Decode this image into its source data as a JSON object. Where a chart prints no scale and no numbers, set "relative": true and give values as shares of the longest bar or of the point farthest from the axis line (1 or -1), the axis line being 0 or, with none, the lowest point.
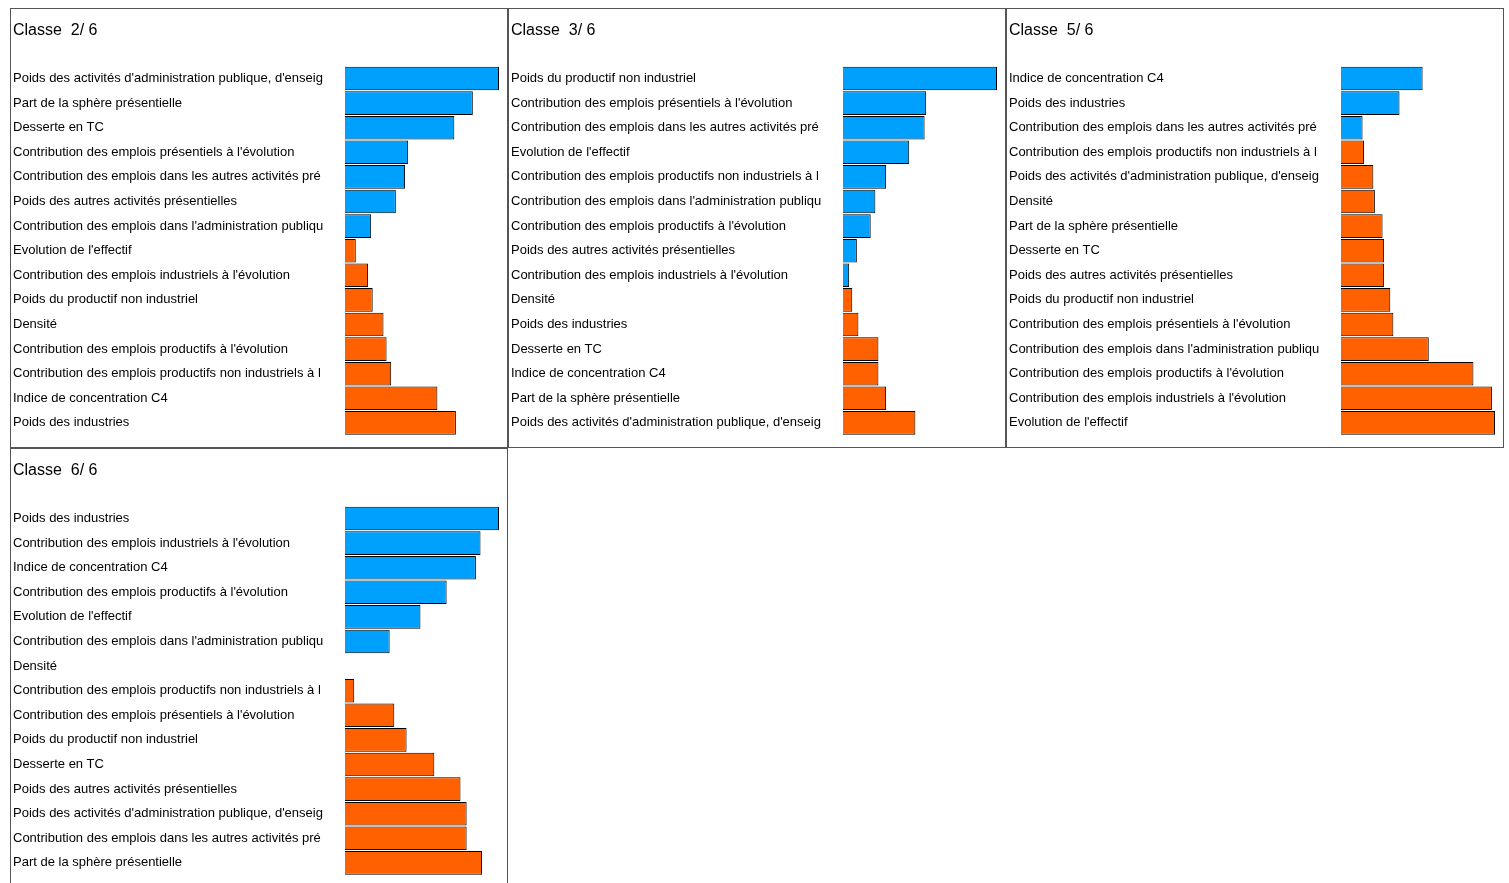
{
  "chart_data": [
    {
      "type": "bar",
      "orientation": "horizontal",
      "relative": true,
      "title": "Classe  2/ 6",
      "categories": [
        "Poids des activités d'administration publique, d'enseig",
        "Part de la sphère présentielle",
        "Desserte en TC",
        "Contribution des emplois présentiels à l'évolution",
        "Contribution des emplois dans les autres activités pré",
        "Poids des autres activités présentielles",
        "Contribution des emplois dans l'administration publiqu",
        "Evolution de l'effectif",
        "Contribution des emplois industriels à l'évolution",
        "Poids du productif non industriel",
        "Densité",
        "Contribution des emplois productifs à l'évolution",
        "Contribution des emplois productifs non industriels à l",
        "Indice de concentration C4",
        "Poids des industries"
      ],
      "values": [
        1,
        0.83,
        0.71,
        0.41,
        0.39,
        0.33,
        0.17,
        0.07,
        0.15,
        0.18,
        0.25,
        0.27,
        0.3,
        0.6,
        0.72
      ],
      "colors": [
        "#00a0ff",
        "#00a0ff",
        "#00a0ff",
        "#00a0ff",
        "#00a0ff",
        "#00a0ff",
        "#00a0ff",
        "#ff6000",
        "#ff6000",
        "#ff6000",
        "#ff6000",
        "#ff6000",
        "#ff6000",
        "#ff6000",
        "#ff6000"
      ]
    },
    {
      "type": "bar",
      "orientation": "horizontal",
      "relative": true,
      "title": "Classe  3/ 6",
      "categories": [
        "Poids du productif non industriel",
        "Contribution des emplois présentiels à l'évolution",
        "Contribution des emplois dans les autres activités pré",
        "Evolution de l'effectif",
        "Contribution des emplois productifs non industriels à l",
        "Contribution des emplois dans l'administration publiqu",
        "Contribution des emplois productifs à l'évolution",
        "Poids des autres activités présentielles",
        "Contribution des emplois industriels à l'évolution",
        "Densité",
        "Poids des industries",
        "Desserte en TC",
        "Indice de concentration C4",
        "Part de la sphère présentielle",
        "Poids des activités d'administration publique, d'enseig"
      ],
      "values": [
        1,
        0.54,
        0.53,
        0.43,
        0.28,
        0.21,
        0.18,
        0.09,
        0.04,
        0.06,
        0.1,
        0.23,
        0.23,
        0.28,
        0.47
      ],
      "colors": [
        "#00a0ff",
        "#00a0ff",
        "#00a0ff",
        "#00a0ff",
        "#00a0ff",
        "#00a0ff",
        "#00a0ff",
        "#00a0ff",
        "#00a0ff",
        "#ff6000",
        "#ff6000",
        "#ff6000",
        "#ff6000",
        "#ff6000",
        "#ff6000"
      ]
    },
    {
      "type": "bar",
      "orientation": "horizontal",
      "relative": true,
      "title": "Classe  5/ 6",
      "categories": [
        "Indice de concentration C4",
        "Poids des industries",
        "Contribution des emplois dans les autres activités pré",
        "Contribution des emplois productifs non industriels à l",
        "Poids des activités d'administration publique, d'enseig",
        "Densité",
        "Part de la sphère présentielle",
        "Desserte en TC",
        "Poids des autres activités présentielles",
        "Poids du productif non industriel",
        "Contribution des emplois présentiels à l'évolution",
        "Contribution des emplois dans l'administration publiqu",
        "Contribution des emplois productifs à l'évolution",
        "Contribution des emplois industriels à l'évolution",
        "Evolution de l'effectif"
      ],
      "values": [
        0.53,
        0.38,
        0.14,
        0.15,
        0.21,
        0.22,
        0.27,
        0.28,
        0.28,
        0.32,
        0.34,
        0.57,
        0.86,
        0.98,
        1
      ],
      "colors": [
        "#00a0ff",
        "#00a0ff",
        "#00a0ff",
        "#ff6000",
        "#ff6000",
        "#ff6000",
        "#ff6000",
        "#ff6000",
        "#ff6000",
        "#ff6000",
        "#ff6000",
        "#ff6000",
        "#ff6000",
        "#ff6000",
        "#ff6000"
      ]
    },
    {
      "type": "bar",
      "orientation": "horizontal",
      "relative": true,
      "title": "Classe  6/ 6",
      "categories": [
        "Poids des industries",
        "Contribution des emplois industriels à l'évolution",
        "Indice de concentration C4",
        "Contribution des emplois productifs à l'évolution",
        "Evolution de l'effectif",
        "Contribution des emplois dans l'administration publiqu",
        "Densité",
        "Contribution des emplois productifs non industriels à l",
        "Contribution des emplois présentiels à l'évolution",
        "Poids du productif non industriel",
        "Desserte en TC",
        "Poids des autres activités présentielles",
        "Poids des activités d'administration publique, d'enseig",
        "Contribution des emplois dans les autres activités pré",
        "Part de la sphère présentielle"
      ],
      "values": [
        1,
        0.88,
        0.85,
        0.66,
        0.49,
        0.29,
        0,
        0.06,
        0.32,
        0.4,
        0.58,
        0.75,
        0.79,
        0.79,
        0.89
      ],
      "colors": [
        "#00a0ff",
        "#00a0ff",
        "#00a0ff",
        "#00a0ff",
        "#00a0ff",
        "#00a0ff",
        "#00a0ff",
        "#ff6000",
        "#ff6000",
        "#ff6000",
        "#ff6000",
        "#ff6000",
        "#ff6000",
        "#ff6000",
        "#ff6000"
      ]
    }
  ]
}
